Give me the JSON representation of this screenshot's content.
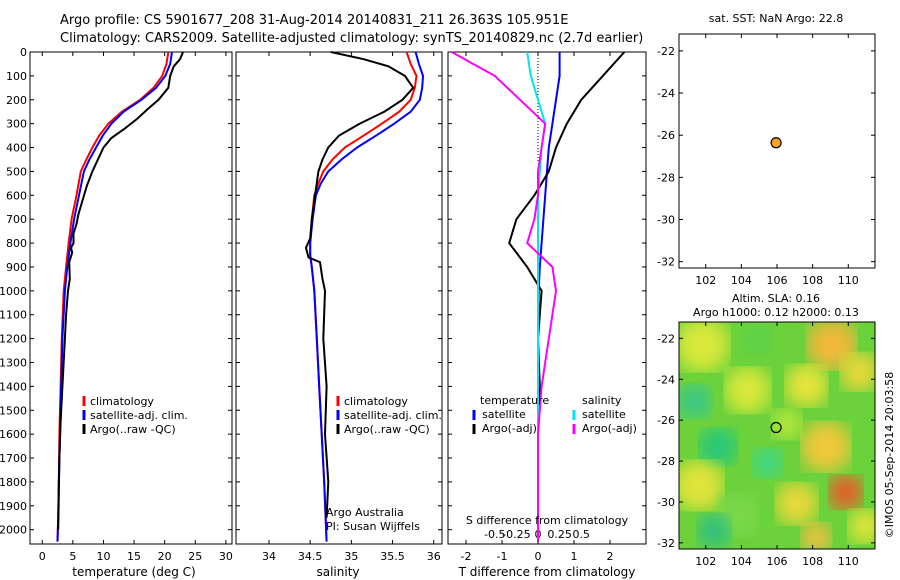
{
  "header": {
    "line1": "Argo profile: CS 5901677_208 31-Aug-2014 20140831_211 26.363S 105.951E",
    "line2": "Climatology: CARS2009. Satellite-adjusted climatology: synTS_20140829.nc (2.7d earlier)"
  },
  "chart_data": [
    {
      "type": "line",
      "panel": "temperature",
      "xlabel": "temperature (deg C)",
      "xlim": [
        -2,
        31
      ],
      "ylim": [
        2060,
        0
      ],
      "yticks": [
        0,
        100,
        200,
        300,
        400,
        500,
        600,
        700,
        800,
        900,
        1000,
        1100,
        1200,
        1300,
        1400,
        1500,
        1600,
        1700,
        1800,
        1900,
        2000
      ],
      "xticks": [
        0,
        5,
        10,
        15,
        20,
        25,
        30
      ],
      "legend": [
        "climatology",
        "satellite-adj. clim.",
        "Argo(..raw -QC)"
      ],
      "series": [
        {
          "name": "climatology",
          "color": "#ff0000",
          "x": [
            20.6,
            20.3,
            19.6,
            18.2,
            16.0,
            13.0,
            10.8,
            9.3,
            8.2,
            7.2,
            6.3,
            5.6,
            4.8,
            4.3,
            3.9,
            3.5,
            3.2,
            3.0,
            2.8,
            2.7,
            2.6,
            2.5
          ],
          "y": [
            0,
            50,
            100,
            150,
            200,
            250,
            300,
            350,
            400,
            450,
            500,
            600,
            700,
            800,
            900,
            1000,
            1200,
            1400,
            1600,
            1800,
            1950,
            2050
          ]
        },
        {
          "name": "satellite-adj. clim.",
          "color": "#0000ff",
          "x": [
            21.2,
            20.9,
            20.1,
            18.6,
            16.2,
            13.3,
            11.3,
            9.9,
            8.8,
            7.7,
            6.8,
            6.0,
            5.2,
            4.6,
            4.1,
            3.7,
            3.3,
            3.1,
            2.9,
            2.7,
            2.6,
            2.5
          ],
          "y": [
            0,
            50,
            100,
            150,
            200,
            250,
            300,
            350,
            400,
            450,
            500,
            600,
            700,
            800,
            900,
            1000,
            1200,
            1400,
            1600,
            1800,
            1950,
            2050
          ]
        },
        {
          "name": "Argo(..raw -QC)",
          "color": "#000000",
          "x": [
            23.0,
            22.5,
            21.5,
            20.9,
            20.6,
            19.0,
            17.2,
            15.5,
            13.5,
            11.3,
            10.0,
            9.1,
            8.2,
            7.3,
            6.6,
            5.9,
            5.6,
            5.1,
            5.1,
            4.7,
            4.9,
            4.4,
            4.5,
            4.2,
            3.9,
            3.6,
            3.3,
            3.0,
            2.8,
            2.7,
            2.6
          ],
          "y": [
            0,
            30,
            60,
            100,
            150,
            200,
            240,
            280,
            320,
            360,
            400,
            450,
            500,
            560,
            620,
            680,
            720,
            760,
            800,
            820,
            840,
            880,
            950,
            1000,
            1100,
            1250,
            1400,
            1550,
            1700,
            1850,
            2000
          ]
        }
      ]
    },
    {
      "type": "line",
      "panel": "salinity",
      "xlabel": "salinity",
      "xlim": [
        33.6,
        36.1
      ],
      "ylim": [
        2060,
        0
      ],
      "xticks": [
        34,
        34.5,
        35,
        35.5,
        36
      ],
      "legend": [
        "climatology",
        "satellite-adj. clim.",
        "Argo(..raw -QC)"
      ],
      "annotation": [
        "Argo Australia",
        "PI: Susan Wijffels"
      ],
      "series": [
        {
          "name": "climatology",
          "color": "#ff0000",
          "x": [
            35.67,
            35.72,
            35.79,
            35.77,
            35.72,
            35.58,
            35.37,
            35.15,
            34.92,
            34.77,
            34.66,
            34.6,
            34.55,
            34.52,
            34.5,
            34.5,
            34.52,
            34.55,
            34.58,
            34.61,
            34.64,
            34.67,
            34.7
          ],
          "y": [
            0,
            50,
            100,
            150,
            200,
            250,
            300,
            350,
            400,
            450,
            500,
            550,
            600,
            700,
            800,
            850,
            900,
            1000,
            1200,
            1400,
            1600,
            1800,
            2050
          ]
        },
        {
          "name": "satellite-adj. clim.",
          "color": "#0000ff",
          "x": [
            35.78,
            35.82,
            35.87,
            35.86,
            35.83,
            35.72,
            35.52,
            35.3,
            35.07,
            34.88,
            34.72,
            34.63,
            34.57,
            34.53,
            34.5,
            34.5,
            34.52,
            34.55,
            34.58,
            34.61,
            34.64,
            34.67,
            34.7
          ],
          "y": [
            0,
            50,
            100,
            150,
            200,
            250,
            300,
            350,
            400,
            450,
            500,
            550,
            600,
            700,
            800,
            850,
            900,
            1000,
            1200,
            1400,
            1600,
            1800,
            2050
          ]
        },
        {
          "name": "Argo(..raw -QC)",
          "color": "#000000",
          "x": [
            34.75,
            35.15,
            35.45,
            35.65,
            35.75,
            35.62,
            35.4,
            35.1,
            34.85,
            34.72,
            34.65,
            34.6,
            34.56,
            34.52,
            34.5,
            34.45,
            34.48,
            34.62,
            34.65,
            34.68,
            34.66,
            34.7,
            34.68,
            34.72,
            34.7
          ],
          "y": [
            0,
            30,
            60,
            100,
            150,
            200,
            250,
            300,
            350,
            400,
            450,
            500,
            600,
            700,
            780,
            820,
            860,
            880,
            950,
            1000,
            1200,
            1400,
            1600,
            1800,
            1950
          ]
        }
      ]
    },
    {
      "type": "line",
      "panel": "difference",
      "xlabel": "T difference from climatology",
      "xlabel_top": "S difference from climatology",
      "xlim": [
        -2.5,
        3.0
      ],
      "ylim": [
        2060,
        0
      ],
      "xticks": [
        -2,
        -1,
        0,
        1,
        2
      ],
      "xticks_top": [
        "-0.5",
        "-0.25",
        "0",
        "0.25",
        "0.5"
      ],
      "legend_groups": [
        {
          "title": "temperature",
          "items": [
            {
              "label": "satellite",
              "color": "#0000ff"
            },
            {
              "label": "Argo(-adj)",
              "color": "#000000"
            }
          ]
        },
        {
          "title": "salinity",
          "items": [
            {
              "label": "satellite",
              "color": "#00e5ee"
            },
            {
              "label": "Argo(-adj)",
              "color": "#ff00ff"
            }
          ]
        }
      ],
      "series": [
        {
          "name": "T satellite",
          "color": "#0000ff",
          "x": [
            0.6,
            0.6,
            0.5,
            0.4,
            0.3,
            0.25,
            0.2,
            0.15,
            0.1,
            0.05,
            0.02,
            0.0,
            0.0,
            0.0,
            0.0
          ],
          "y": [
            0,
            100,
            200,
            300,
            400,
            500,
            600,
            700,
            800,
            900,
            1000,
            1200,
            1400,
            1600,
            2050
          ]
        },
        {
          "name": "T Argo(-adj)",
          "color": "#000000",
          "x": [
            2.4,
            1.8,
            1.2,
            0.8,
            0.5,
            0.3,
            -0.1,
            -0.6,
            -0.8,
            -0.3,
            0.1,
            0.0,
            0.05,
            0.0,
            0.0
          ],
          "y": [
            0,
            100,
            200,
            300,
            400,
            500,
            600,
            700,
            800,
            900,
            1000,
            1200,
            1400,
            1600,
            2050
          ]
        },
        {
          "name": "S satellite",
          "color": "#00e5ee",
          "x": [
            -0.3,
            -0.2,
            0.0,
            0.2,
            0.1,
            0.05,
            0.0,
            0.0,
            0.0,
            0.0,
            0.0,
            0.0,
            0.0,
            0.0,
            0.0
          ],
          "y": [
            0,
            100,
            200,
            300,
            400,
            500,
            600,
            700,
            800,
            900,
            1000,
            1200,
            1400,
            1600,
            2050
          ]
        },
        {
          "name": "S Argo(-adj)",
          "color": "#ff00ff",
          "x": [
            -2.4,
            -1.2,
            -0.5,
            0.2,
            0.1,
            0.0,
            0.0,
            -0.1,
            -0.3,
            0.4,
            0.5,
            0.3,
            0.1,
            0.0,
            0.0
          ],
          "y": [
            0,
            100,
            200,
            300,
            400,
            500,
            600,
            700,
            800,
            900,
            1000,
            1200,
            1400,
            1600,
            2050
          ]
        }
      ]
    },
    {
      "type": "scatter",
      "panel": "sst_map",
      "title": "sat. SST: NaN Argo: 22.8",
      "xlim": [
        100.5,
        111.5
      ],
      "ylim": [
        -32.3,
        -21.2
      ],
      "xticks": [
        102,
        104,
        106,
        108,
        110
      ],
      "yticks": [
        -22,
        -24,
        -26,
        -28,
        -30,
        -32
      ],
      "points": [
        {
          "x": 105.95,
          "y": -26.36,
          "color": "#f5a623"
        }
      ]
    },
    {
      "type": "heatmap",
      "panel": "sla_map",
      "title_lines": [
        "Altim. SLA: 0.16",
        "Argo h1000: 0.12 h2000: 0.13"
      ],
      "xlim": [
        100.5,
        111.5
      ],
      "ylim": [
        -32.3,
        -21.2
      ],
      "xticks": [
        102,
        104,
        106,
        108,
        110
      ],
      "yticks": [
        -22,
        -24,
        -26,
        -28,
        -30,
        -32
      ],
      "points": [
        {
          "x": 105.95,
          "y": -26.36
        }
      ]
    }
  ],
  "side_label": "©IMOS 05-Sep-2014 20:03:58"
}
